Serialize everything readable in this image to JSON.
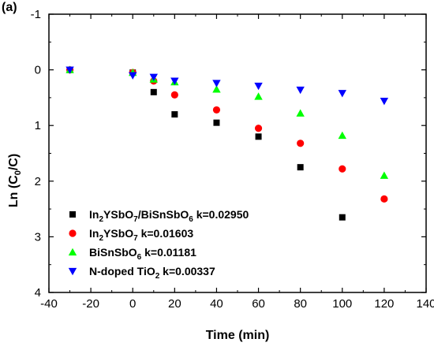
{
  "chart_data": {
    "type": "scatter",
    "panel_label": "(a)",
    "xlabel": "Time (min)",
    "ylabel": "Ln (C0/C)",
    "ylabel_parts": {
      "pre": "Ln (C",
      "sub": "0",
      "post": "/C)"
    },
    "xlim": [
      -40,
      140
    ],
    "ylim": [
      -1,
      4
    ],
    "y_inverted": true,
    "x_ticks": [
      -40,
      -20,
      0,
      20,
      40,
      60,
      80,
      100,
      120,
      140
    ],
    "x_tick_labels": [
      "-40",
      "-20",
      "0",
      "20",
      "40",
      "60",
      "80",
      "100",
      "120",
      "140"
    ],
    "y_ticks": [
      -1,
      0,
      1,
      2,
      3,
      4
    ],
    "y_tick_labels": [
      "-1",
      "0",
      "1",
      "2",
      "3",
      "4"
    ],
    "grid": false,
    "legend_position": "bottom-left",
    "series": [
      {
        "name": "In2YSbO7/BiSnSbO6 k=0.02950",
        "name_parts": [
          [
            "In",
            ""
          ],
          [
            "2",
            "sub"
          ],
          [
            "YSbO",
            ""
          ],
          [
            "7",
            "sub"
          ],
          [
            "/BiSnSbO",
            ""
          ],
          [
            "6",
            "sub"
          ],
          [
            " k=0.02950",
            ""
          ]
        ],
        "marker": "square",
        "color": "#000000",
        "x": [
          -30,
          0,
          10,
          20,
          40,
          60,
          80,
          100
        ],
        "y": [
          0.0,
          0.05,
          0.4,
          0.8,
          0.95,
          1.2,
          1.75,
          2.65
        ]
      },
      {
        "name": "In2YSbO7 k=0.01603",
        "name_parts": [
          [
            "In",
            ""
          ],
          [
            "2",
            "sub"
          ],
          [
            "YSbO",
            ""
          ],
          [
            "7",
            "sub"
          ],
          [
            " k=0.01603",
            ""
          ]
        ],
        "marker": "circle",
        "color": "#ff0000",
        "x": [
          -30,
          0,
          10,
          20,
          40,
          60,
          80,
          100,
          120
        ],
        "y": [
          0.0,
          0.05,
          0.2,
          0.45,
          0.72,
          1.05,
          1.32,
          1.78,
          2.32
        ]
      },
      {
        "name": "BiSnSbO6 k=0.01181",
        "name_parts": [
          [
            "BiSnSbO",
            ""
          ],
          [
            "6",
            "sub"
          ],
          [
            " k=0.01181",
            ""
          ]
        ],
        "marker": "triangle-up",
        "color": "#00ff00",
        "x": [
          -30,
          0,
          10,
          20,
          40,
          60,
          80,
          100,
          120
        ],
        "y": [
          0.0,
          0.05,
          0.17,
          0.22,
          0.35,
          0.48,
          0.78,
          1.18,
          1.9
        ]
      },
      {
        "name": "N-doped TiO2 k=0.00337",
        "name_parts": [
          [
            "N-doped TiO",
            ""
          ],
          [
            "2",
            "sub"
          ],
          [
            " k=0.00337",
            ""
          ]
        ],
        "marker": "triangle-down",
        "color": "#0000ff",
        "x": [
          -30,
          0,
          10,
          20,
          40,
          60,
          80,
          100,
          120
        ],
        "y": [
          0.0,
          0.1,
          0.13,
          0.2,
          0.24,
          0.29,
          0.36,
          0.42,
          0.56
        ]
      }
    ]
  }
}
